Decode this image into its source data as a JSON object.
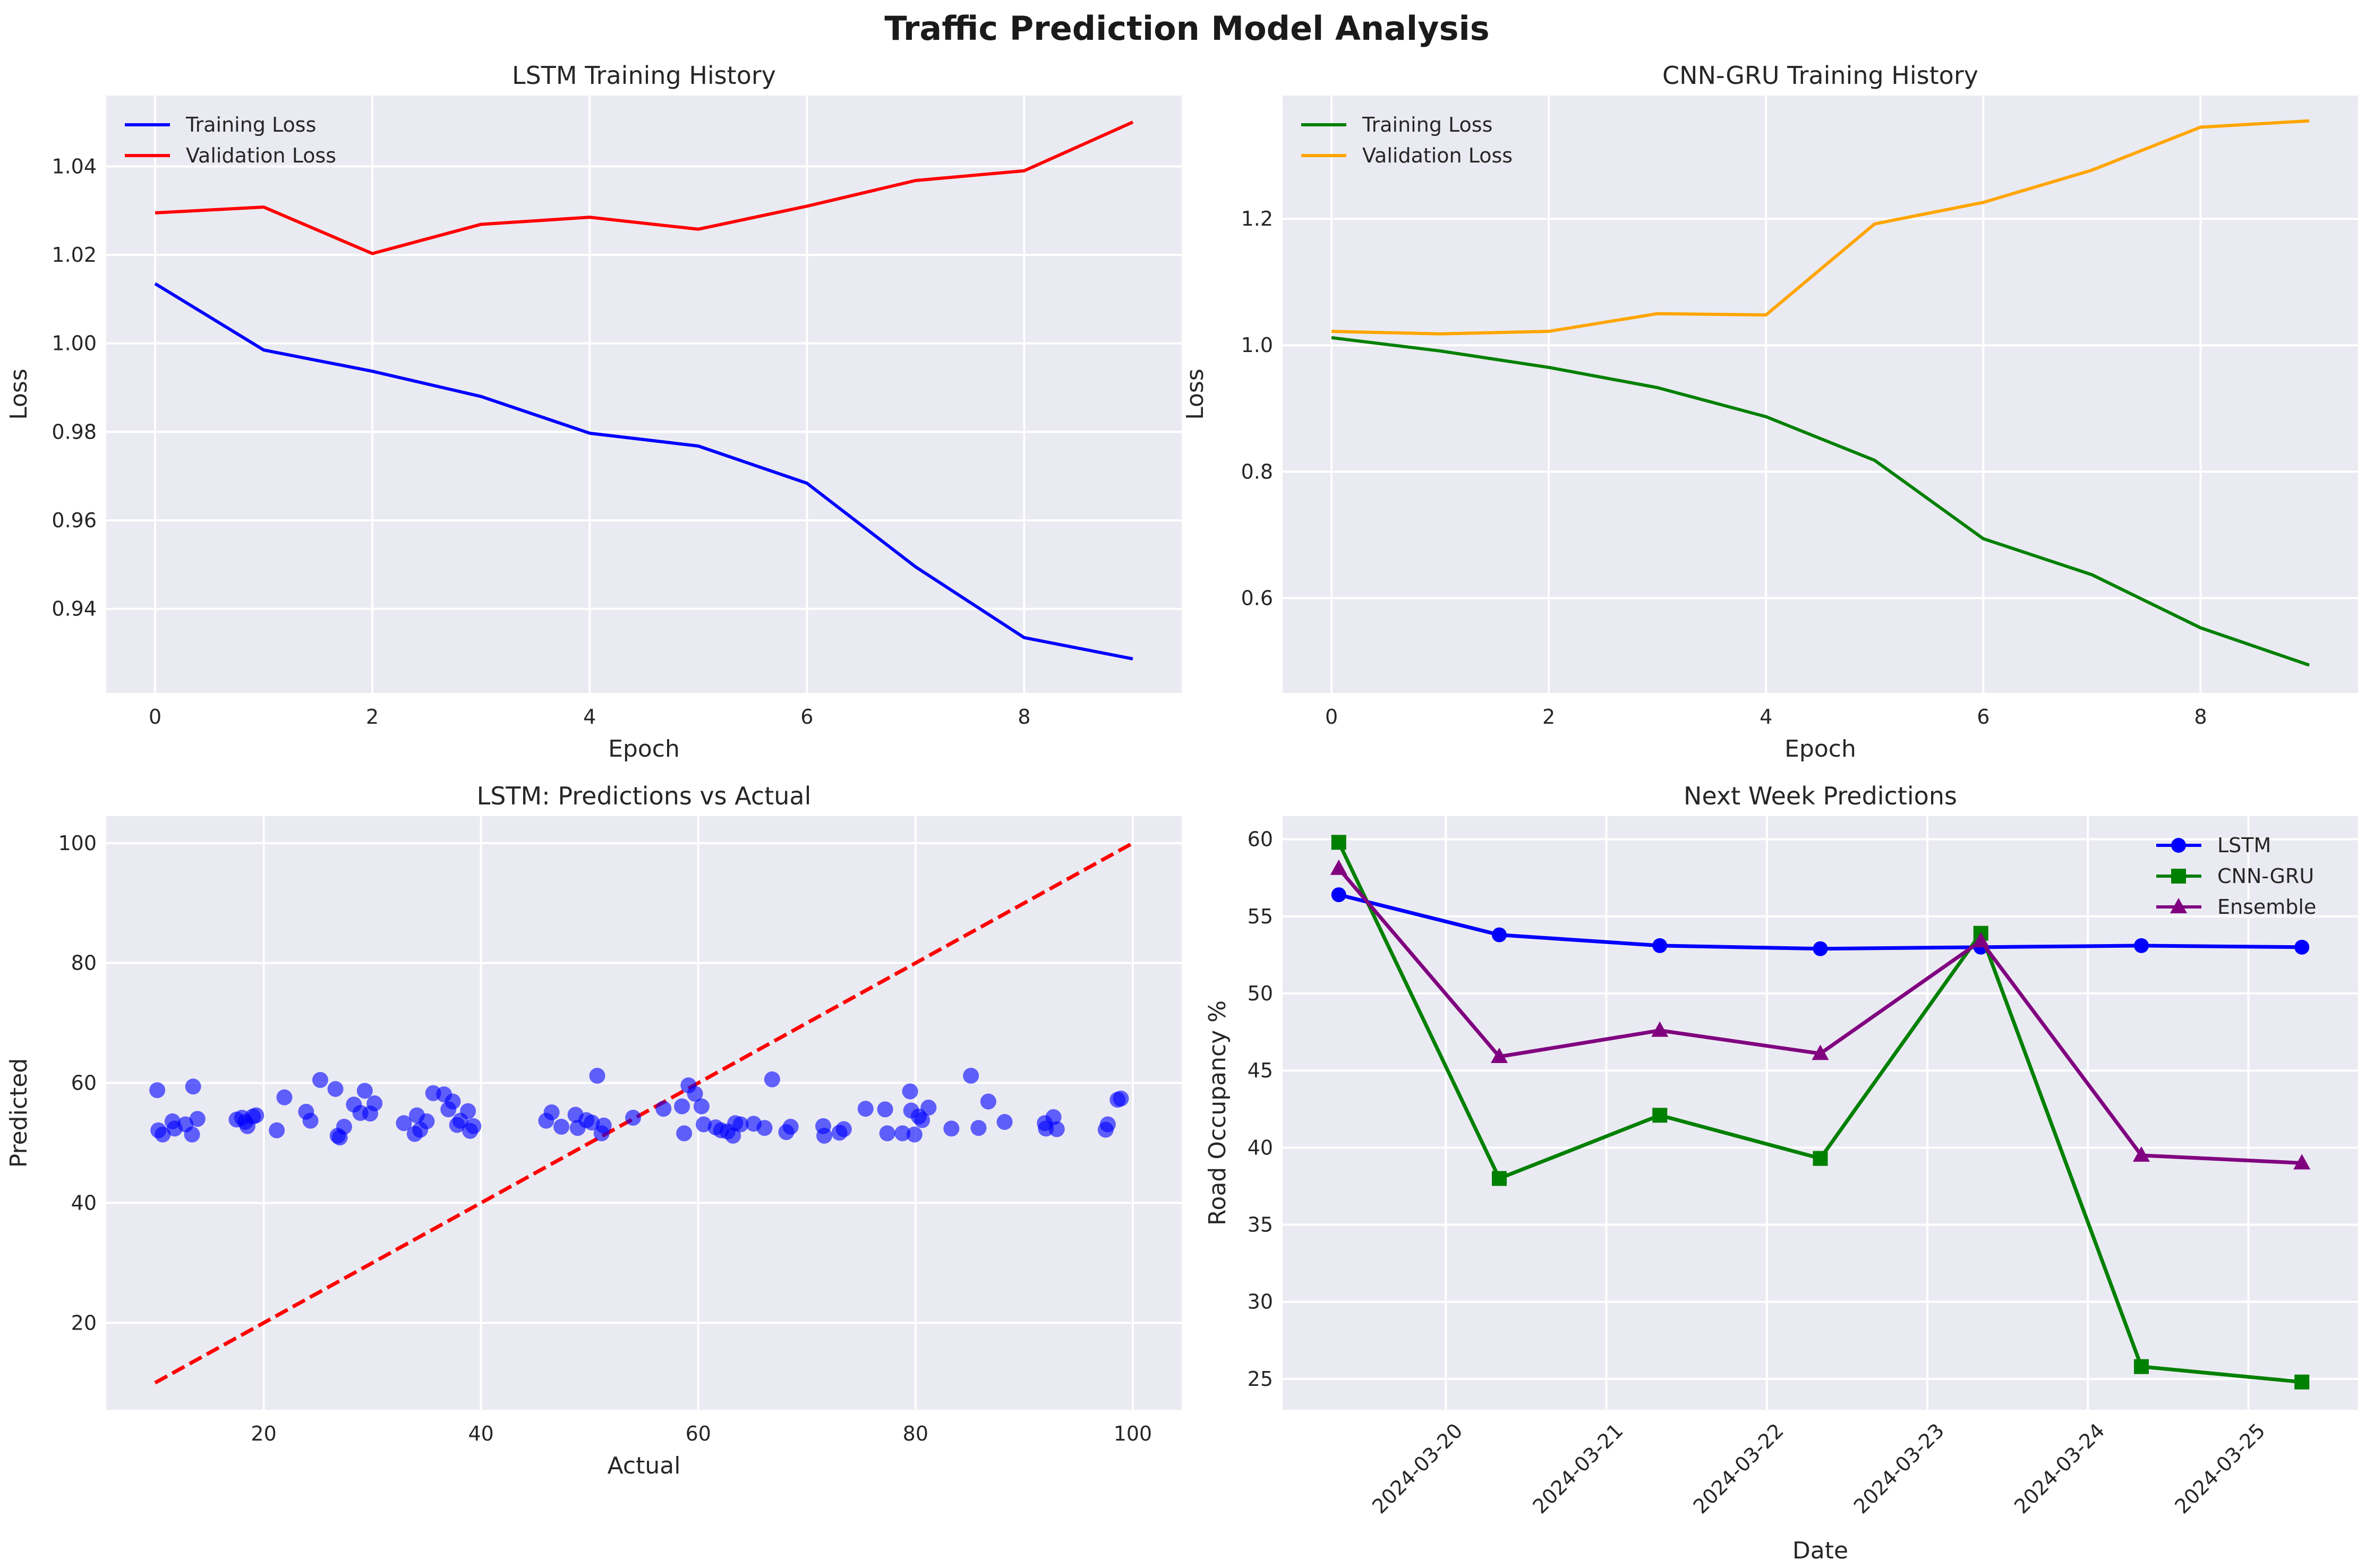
{
  "figure": {
    "title": "Traffic Prediction Model Analysis"
  },
  "chart_data": [
    {
      "id": "lstm_history",
      "type": "line",
      "title": "LSTM Training History",
      "xlabel": "Epoch",
      "ylabel": "Loss",
      "xlim": [
        -0.45,
        9.45
      ],
      "ylim": [
        0.921,
        1.056
      ],
      "xticks": [
        0,
        2,
        4,
        6,
        8
      ],
      "yticks": [
        0.94,
        0.96,
        0.98,
        1.0,
        1.02,
        1.04
      ],
      "ytick_labels": [
        "0.94",
        "0.96",
        "0.98",
        "1.00",
        "1.02",
        "1.04"
      ],
      "x": [
        0,
        1,
        2,
        3,
        4,
        5,
        6,
        7,
        8,
        9
      ],
      "legend": "upper left",
      "grid": true,
      "series": [
        {
          "name": "Training Loss",
          "color": "#0000ff",
          "values": [
            1.0135,
            0.9985,
            0.9937,
            0.988,
            0.9797,
            0.9768,
            0.9684,
            0.9495,
            0.9335,
            0.9287
          ]
        },
        {
          "name": "Validation Loss",
          "color": "#ff0000",
          "values": [
            1.0295,
            1.0308,
            1.0203,
            1.0269,
            1.0285,
            1.0258,
            1.031,
            1.0368,
            1.039,
            1.05
          ]
        }
      ]
    },
    {
      "id": "cnngru_history",
      "type": "line",
      "title": "CNN-GRU Training History",
      "xlabel": "Epoch",
      "ylabel": "Loss",
      "xlim": [
        -0.45,
        9.45
      ],
      "ylim": [
        0.45,
        1.395
      ],
      "xticks": [
        0,
        2,
        4,
        6,
        8
      ],
      "yticks": [
        0.6,
        0.8,
        1.0,
        1.2
      ],
      "ytick_labels": [
        "0.6",
        "0.8",
        "1.0",
        "1.2"
      ],
      "x": [
        0,
        1,
        2,
        3,
        4,
        5,
        6,
        7,
        8,
        9
      ],
      "legend": "upper left",
      "grid": true,
      "series": [
        {
          "name": "Training Loss",
          "color": "#008000",
          "values": [
            1.012,
            0.991,
            0.965,
            0.933,
            0.887,
            0.818,
            0.694,
            0.637,
            0.553,
            0.494
          ]
        },
        {
          "name": "Validation Loss",
          "color": "#ffa500",
          "values": [
            1.022,
            1.018,
            1.022,
            1.05,
            1.048,
            1.192,
            1.226,
            1.277,
            1.345,
            1.355
          ]
        }
      ]
    },
    {
      "id": "lstm_scatter",
      "type": "scatter",
      "title": "LSTM: Predictions vs Actual",
      "xlabel": "Actual",
      "ylabel": "Predicted",
      "xlim": [
        5.5,
        104.5
      ],
      "ylim": [
        5.5,
        104.5
      ],
      "xticks": [
        20,
        40,
        60,
        80,
        100
      ],
      "yticks": [
        20,
        40,
        60,
        80,
        100
      ],
      "grid": true,
      "reference_line": {
        "x": [
          10,
          100
        ],
        "y": [
          10,
          100
        ],
        "color": "#ff0000",
        "style": "dashed"
      },
      "point_color": "#0000ff",
      "points": [
        [
          10.2,
          58.8
        ],
        [
          10.3,
          52.1
        ],
        [
          10.7,
          51.4
        ],
        [
          11.6,
          53.6
        ],
        [
          11.8,
          52.4
        ],
        [
          12.8,
          53.1
        ],
        [
          13.4,
          51.4
        ],
        [
          13.5,
          59.4
        ],
        [
          13.9,
          54.0
        ],
        [
          17.5,
          53.9
        ],
        [
          18.0,
          54.2
        ],
        [
          18.3,
          53.5
        ],
        [
          18.5,
          52.8
        ],
        [
          19.0,
          54.4
        ],
        [
          19.3,
          54.6
        ],
        [
          21.2,
          52.1
        ],
        [
          21.9,
          57.6
        ],
        [
          23.9,
          55.2
        ],
        [
          24.3,
          53.7
        ],
        [
          25.2,
          60.5
        ],
        [
          26.6,
          59.0
        ],
        [
          26.8,
          51.2
        ],
        [
          27.0,
          50.9
        ],
        [
          27.4,
          52.7
        ],
        [
          28.3,
          56.4
        ],
        [
          28.9,
          55.0
        ],
        [
          29.3,
          58.7
        ],
        [
          29.8,
          54.9
        ],
        [
          30.2,
          56.6
        ],
        [
          32.9,
          53.3
        ],
        [
          33.9,
          51.5
        ],
        [
          34.1,
          54.6
        ],
        [
          34.4,
          52.2
        ],
        [
          35.0,
          53.6
        ],
        [
          35.6,
          58.3
        ],
        [
          36.6,
          58.1
        ],
        [
          37.0,
          55.6
        ],
        [
          37.4,
          56.9
        ],
        [
          37.8,
          53.0
        ],
        [
          38.1,
          53.7
        ],
        [
          38.8,
          55.3
        ],
        [
          39.0,
          52.0
        ],
        [
          39.3,
          52.8
        ],
        [
          46.0,
          53.7
        ],
        [
          46.5,
          55.1
        ],
        [
          47.4,
          52.7
        ],
        [
          48.7,
          54.7
        ],
        [
          48.9,
          52.5
        ],
        [
          49.7,
          53.8
        ],
        [
          50.2,
          53.4
        ],
        [
          50.7,
          61.2
        ],
        [
          51.1,
          51.6
        ],
        [
          51.3,
          52.9
        ],
        [
          54.0,
          54.2
        ],
        [
          56.8,
          55.7
        ],
        [
          58.5,
          56.1
        ],
        [
          58.7,
          51.6
        ],
        [
          59.1,
          59.6
        ],
        [
          59.7,
          58.2
        ],
        [
          60.3,
          56.1
        ],
        [
          60.5,
          53.1
        ],
        [
          61.6,
          52.6
        ],
        [
          62.1,
          52.1
        ],
        [
          62.7,
          51.9
        ],
        [
          63.2,
          51.2
        ],
        [
          63.4,
          53.3
        ],
        [
          63.9,
          53.1
        ],
        [
          65.1,
          53.2
        ],
        [
          66.1,
          52.5
        ],
        [
          66.8,
          60.6
        ],
        [
          68.1,
          51.8
        ],
        [
          68.5,
          52.7
        ],
        [
          71.5,
          52.8
        ],
        [
          71.6,
          51.2
        ],
        [
          73.0,
          51.7
        ],
        [
          73.4,
          52.3
        ],
        [
          75.4,
          55.7
        ],
        [
          77.2,
          55.6
        ],
        [
          77.4,
          51.6
        ],
        [
          78.8,
          51.6
        ],
        [
          79.5,
          58.6
        ],
        [
          79.6,
          55.4
        ],
        [
          79.9,
          51.4
        ],
        [
          80.3,
          54.4
        ],
        [
          80.6,
          53.8
        ],
        [
          81.2,
          55.9
        ],
        [
          83.3,
          52.4
        ],
        [
          85.1,
          61.2
        ],
        [
          85.8,
          52.5
        ],
        [
          86.7,
          56.9
        ],
        [
          88.2,
          53.5
        ],
        [
          91.9,
          53.3
        ],
        [
          92.0,
          52.4
        ],
        [
          92.7,
          54.3
        ],
        [
          93.0,
          52.3
        ],
        [
          97.5,
          52.2
        ],
        [
          97.7,
          53.1
        ],
        [
          98.6,
          57.2
        ],
        [
          98.9,
          57.4
        ]
      ]
    },
    {
      "id": "next_week",
      "type": "line",
      "title": "Next Week Predictions",
      "xlabel": "Date",
      "ylabel": "Road Occupancy %",
      "xlim": [
        -0.35,
        6.35
      ],
      "ylim": [
        23.0,
        61.5
      ],
      "x_dates": [
        "2024-03-19 08:00",
        "2024-03-20 08:00",
        "2024-03-21 08:00",
        "2024-03-22 08:00",
        "2024-03-23 08:00",
        "2024-03-24 08:00",
        "2024-03-25 08:00"
      ],
      "xtick_labels": [
        "2024-03-20",
        "2024-03-21",
        "2024-03-22",
        "2024-03-23",
        "2024-03-24",
        "2024-03-25"
      ],
      "yticks": [
        25,
        30,
        35,
        40,
        45,
        50,
        55,
        60
      ],
      "legend": "upper right",
      "grid": true,
      "series": [
        {
          "name": "LSTM",
          "color": "#0000ff",
          "marker": "circle",
          "values": [
            56.4,
            53.8,
            53.1,
            52.9,
            53.0,
            53.1,
            53.0
          ]
        },
        {
          "name": "CNN-GRU",
          "color": "#008000",
          "marker": "square",
          "values": [
            59.8,
            38.0,
            42.1,
            39.3,
            53.9,
            25.8,
            24.8
          ]
        },
        {
          "name": "Ensemble",
          "color": "#800080",
          "marker": "triangle",
          "values": [
            58.1,
            45.9,
            47.6,
            46.1,
            53.4,
            39.5,
            39.0
          ]
        }
      ]
    }
  ]
}
